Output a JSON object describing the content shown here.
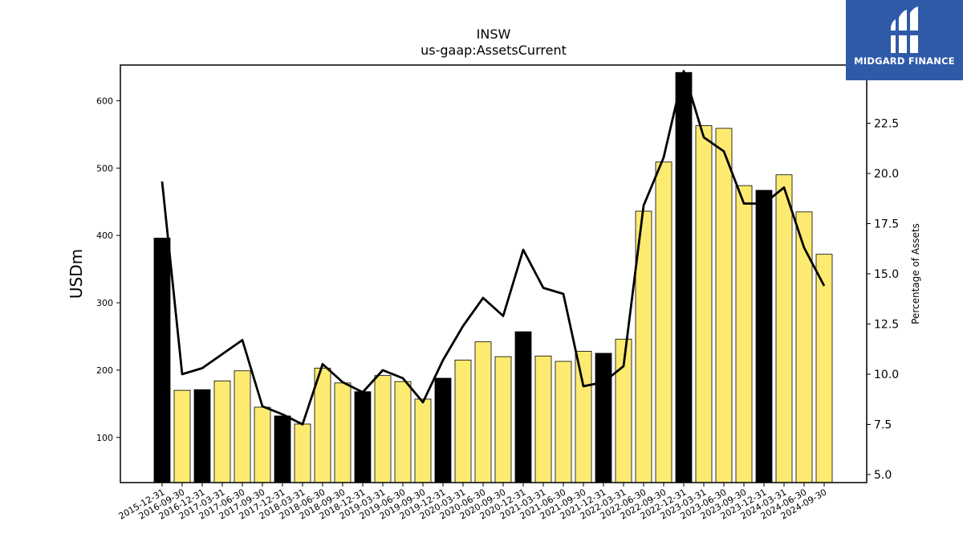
{
  "chart_data": {
    "type": "bar",
    "title": "INSW",
    "subtitle": "us-gaap:AssetsCurrent",
    "ylabel": "USDm",
    "y2label": "Percentage of Assets",
    "ylim": [
      33,
      653
    ],
    "y2lim": [
      4.6,
      25.4
    ],
    "yticks": [
      100,
      200,
      300,
      400,
      500,
      600
    ],
    "y2ticks": [
      5.0,
      7.5,
      10.0,
      12.5,
      15.0,
      17.5,
      20.0,
      22.5
    ],
    "y2ticklabels": [
      "5.0",
      "7.5",
      "10.0",
      "12.5",
      "15.0",
      "17.5",
      "20.0",
      "22.5"
    ],
    "categories": [
      "2015-12-31",
      "2016-09-30",
      "2016-12-31",
      "2017-03-31",
      "2017-06-30",
      "2017-09-30",
      "2017-12-31",
      "2018-03-31",
      "2018-06-30",
      "2018-09-30",
      "2018-12-31",
      "2019-03-31",
      "2019-06-30",
      "2019-09-30",
      "2019-12-31",
      "2020-03-31",
      "2020-06-30",
      "2020-09-30",
      "2020-12-31",
      "2021-03-31",
      "2021-06-30",
      "2021-09-30",
      "2021-12-31",
      "2022-03-31",
      "2022-06-30",
      "2022-09-30",
      "2022-12-31",
      "2023-03-31",
      "2023-06-30",
      "2023-09-30",
      "2023-12-31",
      "2024-03-31",
      "2024-06-30",
      "2024-09-30"
    ],
    "series": [
      {
        "kind": "bar",
        "values": [
          396,
          170,
          171,
          184,
          199,
          145,
          132,
          120,
          203,
          181,
          168,
          192,
          183,
          157,
          188,
          215,
          242,
          220,
          257,
          221,
          213,
          228,
          225,
          246,
          436,
          509,
          642,
          563,
          559,
          474,
          467,
          490,
          435,
          372
        ],
        "year_end": [
          true,
          false,
          true,
          false,
          false,
          false,
          true,
          false,
          false,
          false,
          true,
          false,
          false,
          false,
          true,
          false,
          false,
          false,
          true,
          false,
          false,
          false,
          true,
          false,
          false,
          false,
          true,
          false,
          false,
          false,
          true,
          false,
          false,
          false
        ]
      },
      {
        "kind": "line",
        "axis": "right",
        "values": [
          19.6,
          10.0,
          10.3,
          11.0,
          11.7,
          8.4,
          8.0,
          7.5,
          10.5,
          9.6,
          9.1,
          10.2,
          9.8,
          8.6,
          10.7,
          12.4,
          13.8,
          12.9,
          16.2,
          14.3,
          14.0,
          9.4,
          9.6,
          10.4,
          18.4,
          20.8,
          25.1,
          21.8,
          21.1,
          18.5,
          18.5,
          19.3,
          16.3,
          14.4
        ]
      }
    ],
    "colors": {
      "bar": "#fdeb71",
      "bar_year_end": "#000000",
      "edge": "#000000",
      "line": "#000000"
    },
    "grid": false
  },
  "logo": {
    "text": "MIDGARD FINANCE",
    "color": "#2f5aa8"
  }
}
